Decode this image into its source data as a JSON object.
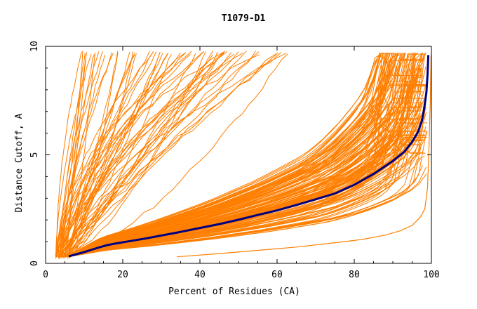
{
  "chart_data": {
    "type": "line",
    "title": "T1079-D1",
    "xlabel": "Percent of Residues (CA)",
    "ylabel": "Distance Cutoff, A",
    "xlim": [
      0,
      100
    ],
    "ylim": [
      0,
      10
    ],
    "xticks": [
      0,
      20,
      40,
      60,
      80,
      100
    ],
    "yticks": [
      0,
      5,
      10
    ],
    "grid": false,
    "background_series_color": "#ff7f00",
    "highlight_series_color": "#000080",
    "highlight": {
      "x": [
        6,
        8,
        10,
        12,
        14,
        16,
        18,
        22,
        26,
        30,
        35,
        40,
        45,
        50,
        55,
        60,
        65,
        70,
        75,
        80,
        85,
        90,
        93,
        95,
        96.5,
        97.5,
        98.2,
        98.7,
        99.0,
        99.2
      ],
      "y": [
        0.32,
        0.42,
        0.52,
        0.63,
        0.74,
        0.84,
        0.91,
        1.03,
        1.15,
        1.28,
        1.45,
        1.63,
        1.81,
        2.01,
        2.23,
        2.44,
        2.69,
        2.95,
        3.22,
        3.62,
        4.12,
        4.72,
        5.15,
        5.6,
        6.05,
        6.55,
        7.2,
        7.9,
        8.7,
        9.6
      ]
    },
    "outlier": {
      "x": [
        34,
        45,
        55,
        65,
        75,
        82,
        88,
        92,
        95,
        97,
        98.3,
        99.0,
        99.4,
        99.7,
        99.9
      ],
      "y": [
        0.3,
        0.45,
        0.6,
        0.75,
        0.95,
        1.1,
        1.3,
        1.5,
        1.75,
        2.1,
        2.5,
        3.5,
        5.5,
        7.5,
        9.6
      ]
    }
  }
}
